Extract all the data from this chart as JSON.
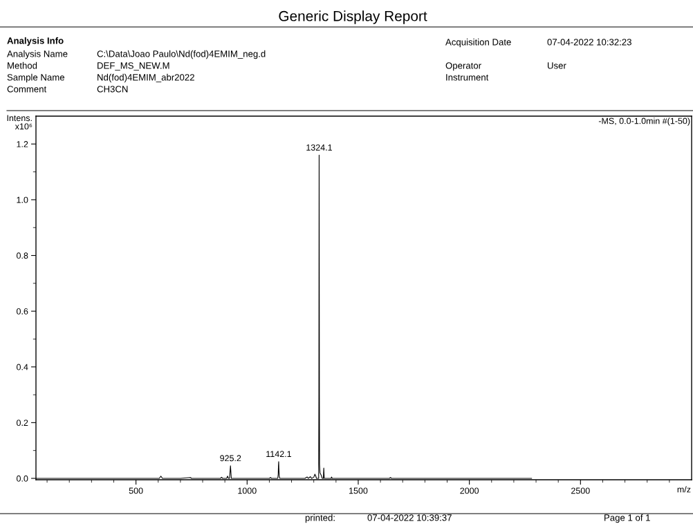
{
  "chart_data": {
    "type": "line",
    "title": "Generic Display Report",
    "subtitle": "-MS, 0.0-1.0min #(1-50)",
    "xlabel": "m/z",
    "ylabel": "Intens.\nx10⁶",
    "annotations": [
      "Analysis Info",
      "Analysis Name",
      "C:\\Data\\Joao Paulo\\Nd(fod)4EMIM_neg.d",
      "Method",
      "DEF_MS_NEW.M",
      "Sample Name",
      "Nd(fod)4EMIM_abr2022",
      "Comment",
      "CH3CN",
      "Acquisition Date",
      "07-04-2022 10:32:23",
      "Operator",
      "User",
      "Instrument",
      "printed:",
      "07-04-2022 10:39:37",
      "Page 1 of 1",
      {
        "text": "1324.1",
        "x": 1324.1,
        "y": 1.16
      },
      {
        "text": "1142.1",
        "x": 1142.1,
        "y": 0.06
      },
      {
        "text": "925.2",
        "x": 925.2,
        "y": 0.045
      }
    ],
    "x": [
      50,
      605,
      612,
      619,
      700,
      745,
      750,
      880,
      885,
      890,
      908,
      912,
      916,
      921,
      925.2,
      929,
      1100,
      1105,
      1110,
      1138,
      1140,
      1141,
      1142.1,
      1143,
      1144.5,
      1147,
      1260,
      1270,
      1275,
      1285,
      1290,
      1300,
      1305,
      1309,
      1312,
      1322,
      1323,
      1323.6,
      1324.1,
      1324.6,
      1325.3,
      1326,
      1328,
      1333,
      1338,
      1343,
      1345,
      1347,
      1378,
      1380,
      1383,
      1640,
      1645,
      1650,
      2280
    ],
    "series": [
      {
        "color": "#000000",
        "values": [
          0,
          0,
          0.008,
          0,
          0,
          0.003,
          0,
          0,
          0.004,
          0,
          0,
          0.008,
          0,
          0,
          0.045,
          0,
          0,
          0.003,
          0,
          0,
          0.015,
          0.045,
          0.06,
          0.035,
          0.008,
          0,
          0,
          0.005,
          0,
          0.006,
          0,
          0.004,
          0.015,
          0.008,
          0,
          0,
          0.29,
          0.8,
          1.16,
          0.8,
          0.29,
          0.05,
          0.02,
          0.012,
          0,
          0,
          0.037,
          0,
          0,
          0.005,
          0,
          0,
          0.003,
          0,
          0
        ]
      }
    ],
    "xlim": [
      50,
      3000
    ],
    "xticks": [
      {
        "value": 100,
        "label": null
      },
      {
        "value": 200,
        "label": null
      },
      {
        "value": 300,
        "label": null
      },
      {
        "value": 400,
        "label": null
      },
      500,
      {
        "value": 600,
        "label": null
      },
      {
        "value": 700,
        "label": null
      },
      {
        "value": 800,
        "label": null
      },
      {
        "value": 900,
        "label": null
      },
      1000,
      {
        "value": 1100,
        "label": null
      },
      {
        "value": 1200,
        "label": null
      },
      {
        "value": 1300,
        "label": null
      },
      {
        "value": 1400,
        "label": null
      },
      1500,
      {
        "value": 1600,
        "label": null
      },
      {
        "value": 1700,
        "label": null
      },
      {
        "value": 1800,
        "label": null
      },
      {
        "value": 1900,
        "label": null
      },
      2000,
      {
        "value": 2100,
        "label": null
      },
      {
        "value": 2200,
        "label": null
      },
      {
        "value": 2300,
        "label": null
      },
      {
        "value": 2400,
        "label": null
      },
      2500,
      {
        "value": 2600,
        "label": null
      },
      {
        "value": 2700,
        "label": null
      },
      {
        "value": 2800,
        "label": null
      },
      {
        "value": 2900,
        "label": null
      }
    ],
    "ylim": [
      -0.005,
      1.3
    ],
    "yticks": [
      {
        "value": 0,
        "label": "0.0"
      },
      {
        "value": 0.1,
        "label": null
      },
      0.2,
      {
        "value": 0.3,
        "label": null
      },
      0.4,
      {
        "value": 0.5,
        "label": null
      },
      0.6,
      {
        "value": 0.7,
        "label": null
      },
      0.8,
      {
        "value": 0.9,
        "label": null
      },
      {
        "value": 1.0,
        "label": "1.0"
      },
      {
        "value": 1.1,
        "label": null
      },
      1.2
    ]
  }
}
